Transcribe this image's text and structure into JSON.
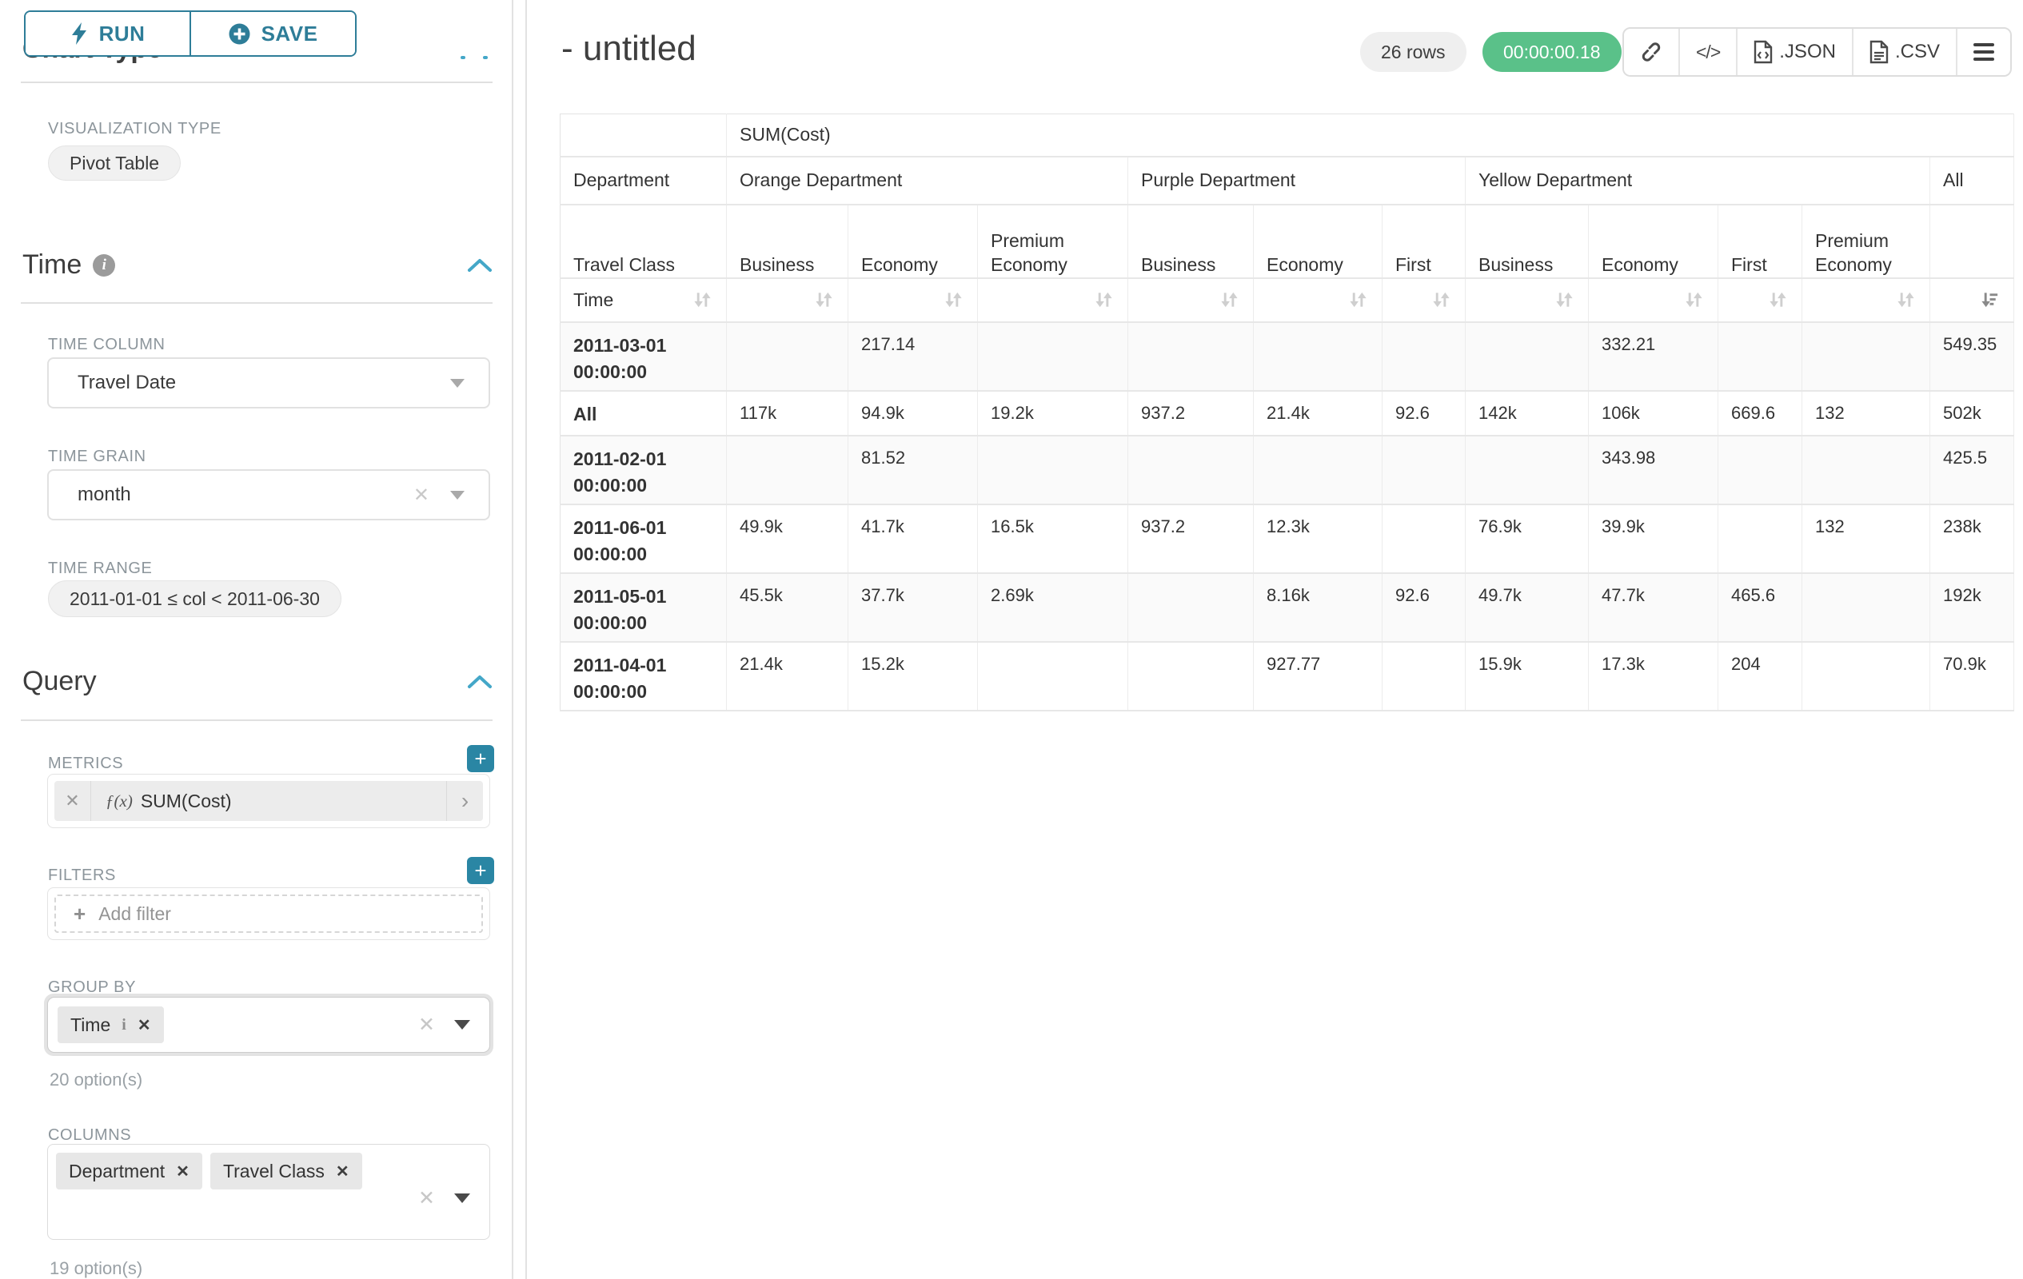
{
  "colors": {
    "accent_teal": "#2e7d98",
    "plus_teal": "#2a86a4",
    "chevron_teal": "#44a7c8",
    "success_green": "#5ac189",
    "chip_gray": "#ececec"
  },
  "icons": {
    "run": "lightning-bolt",
    "save": "plus-circle",
    "section_info": "info-circle",
    "section_collapse": "chevron-up",
    "select_caret": "caret-down",
    "select_clear": "✕",
    "chip_remove": "✕",
    "metric_function": "ƒ(x)",
    "metric_expand": "›",
    "copy_link": "link",
    "embed_code": "</>",
    "menu": "hamburger",
    "sort": "sort-arrows",
    "sort_active": "sort-amount-desc"
  },
  "sidebar": {
    "run_label": "RUN",
    "save_label": "SAVE",
    "chart_type_heading": "Chart Type",
    "viz_type_label": "VISUALIZATION TYPE",
    "viz_type_value": "Pivot Table",
    "time": {
      "heading": "Time",
      "time_column_label": "TIME COLUMN",
      "time_column_value": "Travel Date",
      "time_grain_label": "TIME GRAIN",
      "time_grain_value": "month",
      "time_range_label": "TIME RANGE",
      "time_range_value": "2011-01-01 ≤ col < 2011-06-30"
    },
    "query": {
      "heading": "Query",
      "metrics_label": "METRICS",
      "metric_fx": "ƒ(x)",
      "metric_value": "SUM(Cost)",
      "filters_label": "FILTERS",
      "add_filter_placeholder": "Add filter",
      "group_by_label": "GROUP BY",
      "group_by_chips": [
        "Time"
      ],
      "group_by_options_hint": "20 option(s)",
      "columns_label": "COLUMNS",
      "columns_chips": [
        "Department",
        "Travel Class"
      ],
      "columns_options_hint": "19 option(s)"
    }
  },
  "main": {
    "title": "- untitled",
    "rows_badge": "26 rows",
    "timer_badge": "00:00:00.18",
    "export": {
      "json_label": ".JSON",
      "csv_label": ".CSV"
    }
  },
  "chart_data": {
    "type": "table",
    "title": "SUM(Cost) pivot table",
    "metric": "SUM(Cost)",
    "row_dimension_label": "Time",
    "column_dimension_labels": [
      "Department",
      "Travel Class"
    ],
    "column_groups": [
      {
        "label": "Orange Department",
        "classes": [
          "Business",
          "Economy",
          "Premium Economy"
        ]
      },
      {
        "label": "Purple Department",
        "classes": [
          "Business",
          "Economy",
          "First"
        ]
      },
      {
        "label": "Yellow Department",
        "classes": [
          "Business",
          "Economy",
          "First",
          "Premium Economy"
        ]
      },
      {
        "label": "All",
        "classes": [
          ""
        ]
      }
    ],
    "rows": [
      {
        "label": "2011-03-01 00:00:00",
        "values": [
          "",
          "217.14",
          "",
          "",
          "",
          "",
          "",
          "332.21",
          "",
          "",
          "549.35"
        ]
      },
      {
        "label": "All",
        "values": [
          "117k",
          "94.9k",
          "19.2k",
          "937.2",
          "21.4k",
          "92.6",
          "142k",
          "106k",
          "669.6",
          "132",
          "502k"
        ]
      },
      {
        "label": "2011-02-01 00:00:00",
        "values": [
          "",
          "81.52",
          "",
          "",
          "",
          "",
          "",
          "343.98",
          "",
          "",
          "425.5"
        ]
      },
      {
        "label": "2011-06-01 00:00:00",
        "values": [
          "49.9k",
          "41.7k",
          "16.5k",
          "937.2",
          "12.3k",
          "",
          "76.9k",
          "39.9k",
          "",
          "132",
          "238k"
        ]
      },
      {
        "label": "2011-05-01 00:00:00",
        "values": [
          "45.5k",
          "37.7k",
          "2.69k",
          "",
          "8.16k",
          "92.6",
          "49.7k",
          "47.7k",
          "465.6",
          "",
          "192k"
        ]
      },
      {
        "label": "2011-04-01 00:00:00",
        "values": [
          "21.4k",
          "15.2k",
          "",
          "",
          "927.77",
          "",
          "15.9k",
          "17.3k",
          "204",
          "",
          "70.9k"
        ]
      }
    ]
  }
}
